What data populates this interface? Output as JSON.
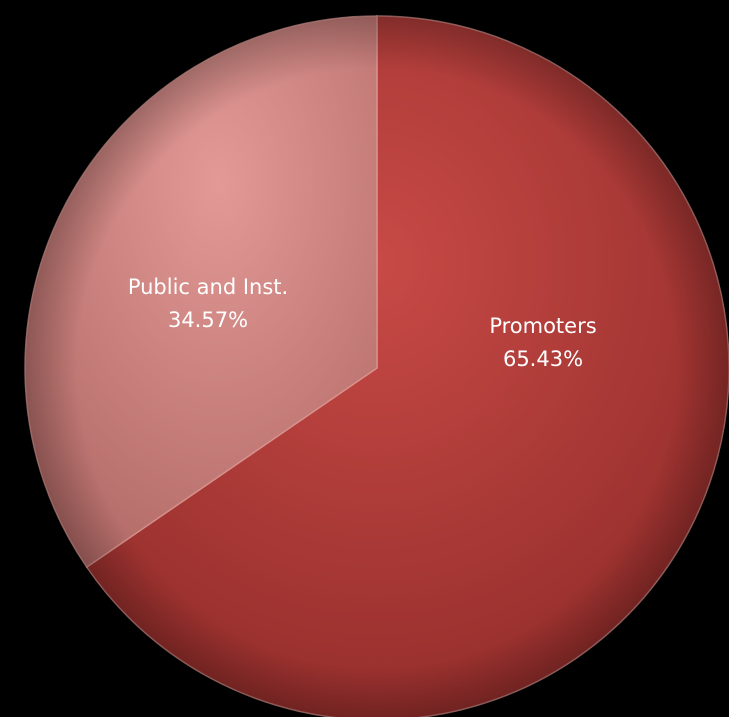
{
  "chart_data": {
    "type": "pie",
    "title": "",
    "series": [
      {
        "values": [
          65.43,
          34.57
        ]
      }
    ],
    "categories": [
      "Promoters",
      "Public and Inst."
    ],
    "slices": [
      {
        "label": "Promoters",
        "value": 65.43,
        "value_label": "65.43%",
        "color": "#c0403c"
      },
      {
        "label": "Public and Inst.",
        "value": 34.57,
        "value_label": "34.57%",
        "color": "#d48a87"
      }
    ],
    "start": "top",
    "direction": "clockwise",
    "legend": "none",
    "background": "#000000"
  }
}
